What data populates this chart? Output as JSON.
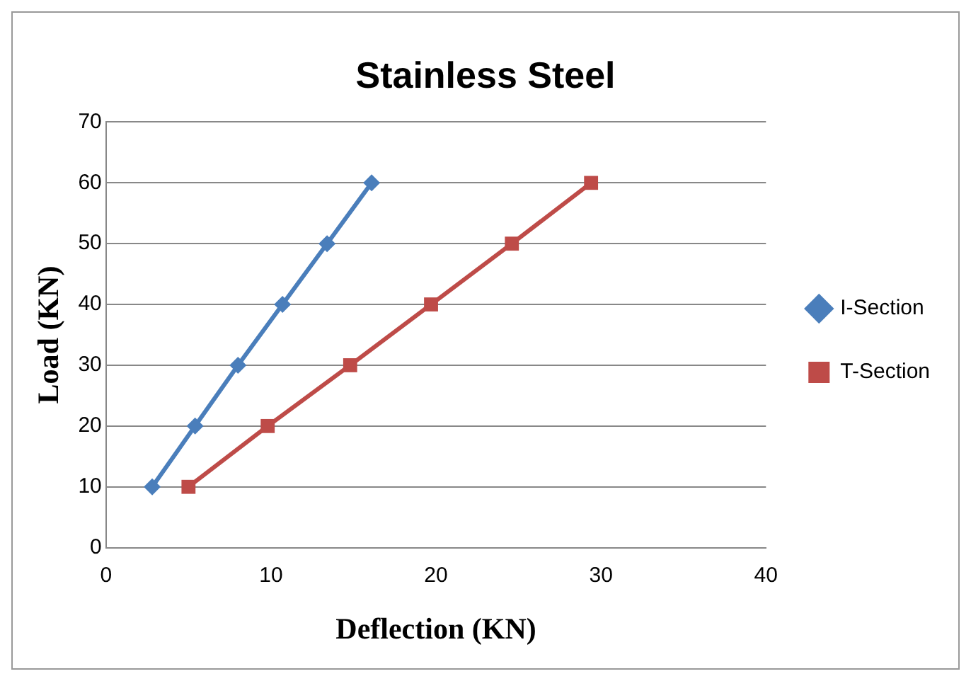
{
  "chart_data": {
    "type": "line",
    "title": "Stainless Steel",
    "xlabel": "Deflection (KN)",
    "ylabel": "Load (KN)",
    "xlim": [
      0,
      40
    ],
    "xticks": [
      0,
      10,
      20,
      30,
      40
    ],
    "ylim": [
      0,
      70
    ],
    "yticks": [
      0,
      10,
      20,
      30,
      40,
      50,
      60,
      70
    ],
    "grid": "y",
    "legend": "right",
    "series": [
      {
        "name": "I-Section",
        "color": "#4a7ebb",
        "marker": "diamond",
        "x": [
          2.8,
          5.4,
          8.0,
          10.7,
          13.4,
          16.1
        ],
        "values": [
          10,
          20,
          30,
          40,
          50,
          60
        ]
      },
      {
        "name": "T-Section",
        "color": "#be4b48",
        "marker": "square",
        "x": [
          5.0,
          9.8,
          14.8,
          19.7,
          24.6,
          29.4
        ],
        "values": [
          10,
          20,
          30,
          40,
          50,
          60
        ]
      }
    ]
  }
}
